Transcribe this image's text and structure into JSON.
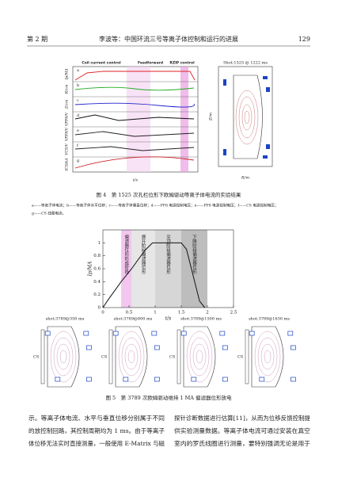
{
  "header": {
    "issue": "第 2 期",
    "running_title": "李波等：中国环流三号等离子体控制和运行的进展",
    "page": "129"
  },
  "figure4": {
    "top_labels": [
      "Coil current control",
      "Feedforward",
      "RZIP control"
    ],
    "panel_ylabels": [
      "Ip/MA",
      "R/cm",
      "Z/cm",
      "VPF6/V",
      "VPF8/V",
      "VCS/V",
      "ICS/kA"
    ],
    "panel_letters": [
      "a",
      "b",
      "c",
      "d",
      "e",
      "f",
      "g"
    ],
    "xlabel": "t/s",
    "shot": "Shot:1525 @ 1222 ms",
    "eq_xlabel": "R/m",
    "eq_ylabel": "Z/m",
    "caption": "图 4　第 1525 次孔栏位形下欧姆驱动等离子体电流的实验结果",
    "legend_lines": [
      "a——等离子体电流；b——等离子体水平位移；c——等离子体垂直位移；d——PF6 电源控制电压；e——PF8 电源控制电压；f——CS 电源控制电压；",
      "g——CS 线圈电流。"
    ]
  },
  "figure5": {
    "ylabel": "Ip/MA",
    "xlabel": "t/s",
    "xlim": [
      0,
      2.5
    ],
    "xticks": [
      0,
      0.5,
      1,
      1.5,
      2,
      2.5
    ],
    "ylim": [
      0,
      1.2
    ],
    "yticks": [
      0,
      0.2,
      0.4,
      0.6,
      0.8,
      1
    ],
    "phases": [
      {
        "label": "偏滤器位形形成阶段",
        "start": 0.35,
        "end": 0.55,
        "color": "#f2c6ef"
      },
      {
        "label": "爬升阶段偏滤器位形",
        "start": 0.55,
        "end": 1.0,
        "color": "#e6e6e6"
      },
      {
        "label": "平顶阶段偏滤器位形",
        "start": 1.0,
        "end": 1.5,
        "color": "#d6d6d6"
      },
      {
        "label": "下降阶段偏滤器位形",
        "start": 1.5,
        "end": 2.0,
        "color": "#bdbdbd"
      }
    ],
    "t": [
      0,
      0.1,
      0.35,
      0.55,
      0.8,
      0.95,
      1.5,
      1.6,
      1.85,
      1.95
    ],
    "ip": [
      0,
      0.12,
      0.4,
      0.6,
      0.88,
      1,
      1,
      0.9,
      0.1,
      0
    ],
    "shots": [
      "shot:3789@350 ms",
      "shot:3789@800 ms",
      "shot:3789@1500 ms",
      "shot:3789@1630 ms"
    ],
    "cs_label": "CS",
    "caption": "图 5　第 3789 次欧姆驱动维持 1 MA 偏滤器位形放电"
  },
  "body": {
    "left": [
      "示。等离子体电流、水平与垂直位移分别属于不同",
      "的放控制回路，其控制周期均为 1 ms。由于等离子",
      "体位移无法实时直接测量，一般使用 E-Matrix 与磁"
    ],
    "right": [
      "探针诊断数据进行估算[11]，从而为位移反馈控制提",
      "供实验测量数据。等离子体电流可通过安装在真空",
      "室内的罗氏线圈进行测量，要特别强调无论是用于"
    ]
  }
}
